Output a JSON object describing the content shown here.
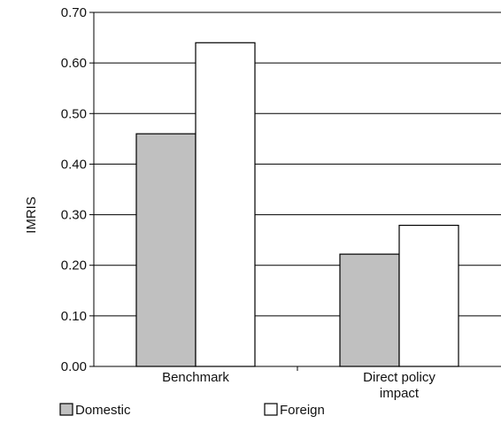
{
  "chart_data": {
    "type": "bar",
    "categories": [
      [
        "Benchmark"
      ],
      [
        "Direct policy",
        "impact"
      ]
    ],
    "series": [
      {
        "name": "Domestic",
        "color": "#c0c0c0",
        "values": [
          0.46,
          0.222
        ]
      },
      {
        "name": "Foreign",
        "color": "#ffffff",
        "values": [
          0.64,
          0.279
        ]
      }
    ],
    "ylabel": "IMRIS",
    "ylim": [
      0,
      0.7
    ],
    "yticks": [
      "0.00",
      "0.10",
      "0.20",
      "0.30",
      "0.40",
      "0.50",
      "0.60",
      "0.70"
    ],
    "grid": true,
    "legend": "bottom"
  }
}
